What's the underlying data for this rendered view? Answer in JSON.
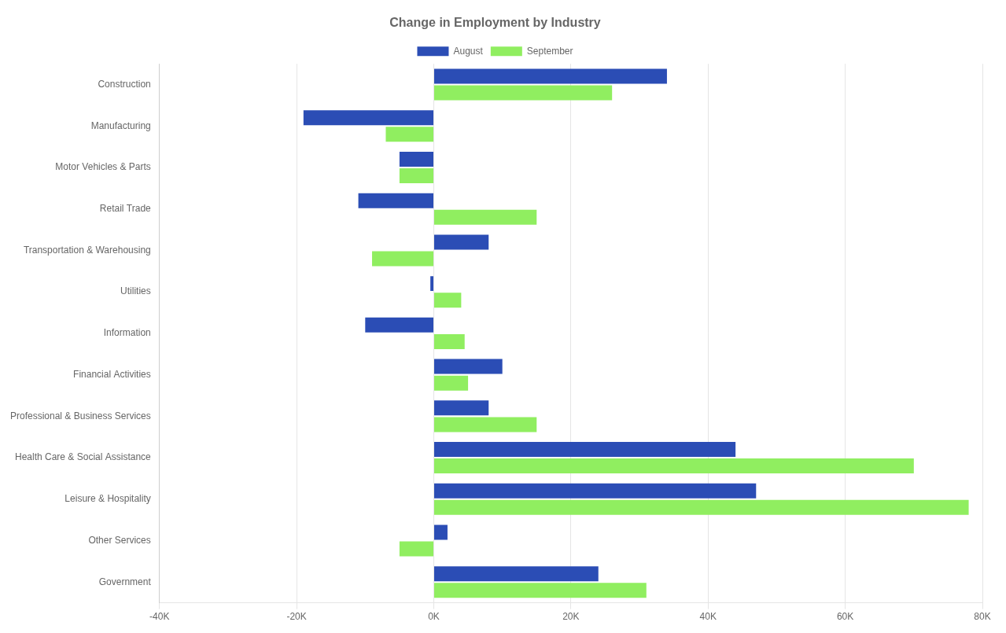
{
  "chart_data": {
    "type": "bar",
    "orientation": "horizontal",
    "title": "Change in Employment by Industry",
    "categories": [
      "Construction",
      "Manufacturing",
      "Motor Vehicles & Parts",
      "Retail Trade",
      "Transportation & Warehousing",
      "Utilities",
      "Information",
      "Financial Activities",
      "Professional & Business Services",
      "Health Care & Social Assistance",
      "Leisure & Hospitality",
      "Other Services",
      "Government"
    ],
    "series": [
      {
        "name": "August",
        "color": "#2b4db5",
        "values": [
          34000,
          -19000,
          -5000,
          -11000,
          8000,
          -500,
          -10000,
          10000,
          8000,
          44000,
          47000,
          2000,
          24000
        ]
      },
      {
        "name": "September",
        "color": "#90ee60",
        "values": [
          26000,
          -7000,
          -5000,
          15000,
          -9000,
          4000,
          4500,
          5000,
          15000,
          70000,
          78000,
          -5000,
          31000
        ]
      }
    ],
    "xlim": [
      -40000,
      80000
    ],
    "xticks": [
      {
        "value": -40000,
        "label": "-40K"
      },
      {
        "value": -20000,
        "label": "-20K"
      },
      {
        "value": 0,
        "label": "0K"
      },
      {
        "value": 20000,
        "label": "20K"
      },
      {
        "value": 40000,
        "label": "40K"
      },
      {
        "value": 60000,
        "label": "60K"
      },
      {
        "value": 80000,
        "label": "80K"
      }
    ],
    "grid": "x",
    "legend": "top"
  }
}
